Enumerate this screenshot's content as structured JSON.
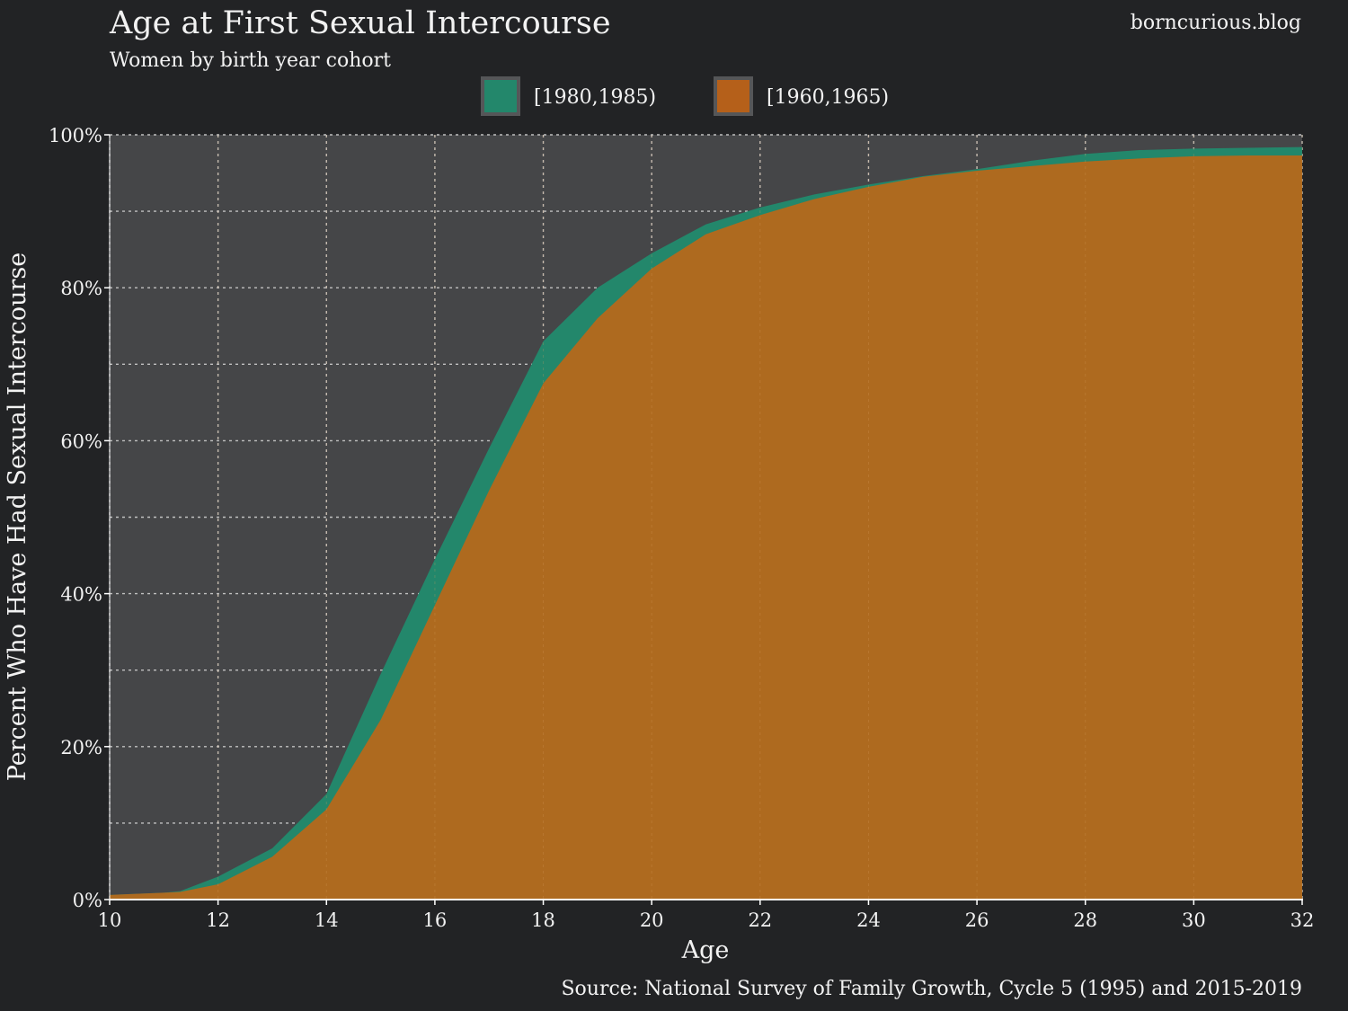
{
  "chart_data": {
    "type": "area",
    "title": "Age at First Sexual Intercourse",
    "subtitle": "Women by birth year cohort",
    "watermark": "borncurious.blog",
    "source": "Source: National Survey of Family Growth, Cycle 5 (1995) and 2015-2019",
    "xlabel": "Age",
    "ylabel": "Percent Who Have Had Sexual Intercourse",
    "xlim": [
      10,
      32
    ],
    "ylim": [
      0,
      100
    ],
    "x_ticks": [
      10,
      12,
      14,
      16,
      18,
      20,
      22,
      24,
      26,
      28,
      30,
      32
    ],
    "x_tick_labels": [
      "10",
      "12",
      "14",
      "16",
      "18",
      "20",
      "22",
      "24",
      "26",
      "28",
      "30",
      "32"
    ],
    "y_ticks": [
      0,
      20,
      40,
      60,
      80,
      100
    ],
    "y_tick_labels": [
      "0%",
      "20%",
      "40%",
      "60%",
      "80%",
      "100%"
    ],
    "y_minor_ticks": [
      10,
      30,
      50,
      70,
      90
    ],
    "grid": true,
    "legend_position": "top-center",
    "x": [
      10,
      11,
      11.3,
      12,
      13,
      14,
      15,
      16,
      17,
      18,
      19,
      20,
      21,
      22,
      23,
      24,
      25,
      26,
      27,
      28,
      29,
      30,
      31,
      32
    ],
    "series": [
      {
        "name": "[1980,1985)",
        "color": "#23876b",
        "values": [
          0.6,
          0.9,
          1.1,
          3.0,
          6.7,
          13.8,
          29.5,
          44.5,
          59.0,
          73.0,
          80.0,
          84.5,
          88.3,
          90.5,
          92.2,
          93.5,
          94.6,
          95.5,
          96.6,
          97.5,
          98.0,
          98.2,
          98.3,
          98.4
        ]
      },
      {
        "name": "[1960,1965)",
        "color": "#b0621c",
        "values": [
          0.6,
          0.9,
          1.0,
          2.0,
          5.6,
          11.8,
          23.5,
          38.5,
          53.5,
          67.5,
          76.0,
          82.5,
          87.0,
          89.5,
          91.6,
          93.2,
          94.5,
          95.3,
          95.9,
          96.5,
          96.9,
          97.2,
          97.3,
          97.3
        ]
      }
    ]
  },
  "colors": {
    "page_background": "#222325",
    "plot_background": "#454648",
    "grid": "#cfcfcf",
    "orange_fill": "#ae6a1f"
  }
}
